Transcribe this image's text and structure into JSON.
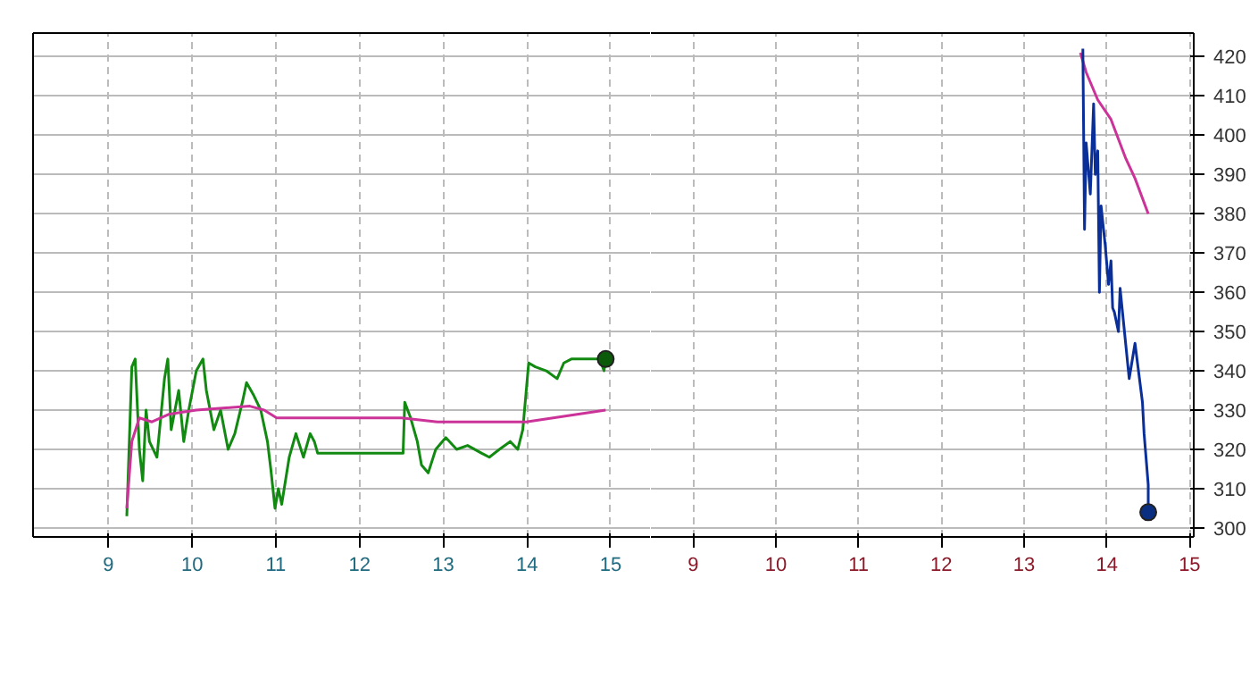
{
  "chart_data": [
    {
      "type": "line",
      "xlim": [
        8.1,
        15.48
      ],
      "ylim": [
        297.7,
        426
      ],
      "xticks": [
        9,
        10,
        11,
        12,
        13,
        14,
        15
      ],
      "yticks": [
        300,
        310,
        320,
        330,
        340,
        350,
        360,
        370,
        380,
        390,
        400,
        410,
        420
      ],
      "tick_labels": "x",
      "grid": true,
      "series": [
        {
          "color": "#128a12",
          "x": [
            9.22,
            9.28,
            9.32,
            9.37,
            9.41,
            9.45,
            9.49,
            9.58,
            9.67,
            9.71,
            9.75,
            9.84,
            9.9,
            9.96,
            10.05,
            10.13,
            10.17,
            10.26,
            10.34,
            10.43,
            10.51,
            10.6,
            10.65,
            10.73,
            10.82,
            10.9,
            10.94,
            10.99,
            11.03,
            11.07,
            11.16,
            11.24,
            11.33,
            11.41,
            11.46,
            11.5,
            12.52,
            12.54,
            12.61,
            12.69,
            12.74,
            12.82,
            12.91,
            13.03,
            13.16,
            13.29,
            13.46,
            13.55,
            13.67,
            13.8,
            13.89,
            13.95,
            14.02,
            14.1,
            14.23,
            14.36,
            14.44,
            14.53,
            14.74,
            14.87,
            14.92,
            14.94
          ],
          "values": [
            303,
            341,
            343,
            320,
            312,
            330,
            322,
            318,
            338,
            343,
            325,
            335,
            322,
            330,
            340,
            343,
            335,
            325,
            330,
            320,
            324,
            332,
            337,
            334,
            330,
            322,
            315,
            305,
            310,
            306,
            318,
            324,
            318,
            324,
            322,
            319,
            319,
            332,
            328,
            322,
            316,
            314,
            320,
            323,
            320,
            321,
            319,
            318,
            320,
            322,
            320,
            325,
            342,
            341,
            340,
            338,
            342,
            343,
            343,
            343,
            340,
            343
          ]
        },
        {
          "color": "#cc3399",
          "x": [
            9.22,
            9.28,
            9.37,
            9.52,
            9.73,
            10.05,
            10.69,
            10.86,
            11.01,
            11.55,
            12.5,
            12.93,
            13.99,
            14.94
          ],
          "values": [
            305,
            322,
            328,
            327,
            329,
            330,
            331,
            330,
            328,
            328,
            328,
            327,
            327,
            330
          ]
        },
        {
          "type": "scatter",
          "marker": "circle",
          "color": "#0a5a0a",
          "x": [
            14.94
          ],
          "values": [
            343
          ]
        }
      ]
    },
    {
      "type": "line",
      "xlim": [
        8.49,
        15.05
      ],
      "ylim": [
        297.7,
        426
      ],
      "xticks": [
        9,
        10,
        11,
        12,
        13,
        14,
        15
      ],
      "yticks": [
        300,
        310,
        320,
        330,
        340,
        350,
        360,
        370,
        380,
        390,
        400,
        410,
        420
      ],
      "grid": true,
      "series": [
        {
          "color": "#cc3399",
          "x": [
            13.68,
            13.75,
            13.89,
            14.05,
            14.23,
            14.34,
            14.5
          ],
          "values": [
            421,
            416,
            409,
            404,
            394,
            389,
            380
          ]
        },
        {
          "color": "#0a2f99",
          "x": [
            13.71,
            13.73,
            13.75,
            13.8,
            13.84,
            13.86,
            13.89,
            13.91,
            13.93,
            13.98,
            14.02,
            14.05,
            14.07,
            14.09,
            14.14,
            14.16,
            14.27,
            14.34,
            14.43,
            14.45,
            14.5,
            14.5
          ],
          "values": [
            422,
            376,
            398,
            385,
            408,
            390,
            396,
            360,
            382,
            372,
            362,
            368,
            356,
            355,
            350,
            361,
            338,
            347,
            332,
            324,
            311,
            304
          ]
        },
        {
          "type": "scatter",
          "marker": "circle",
          "color": "#0a2f80",
          "x": [
            14.5
          ],
          "values": [
            304
          ]
        }
      ]
    }
  ]
}
